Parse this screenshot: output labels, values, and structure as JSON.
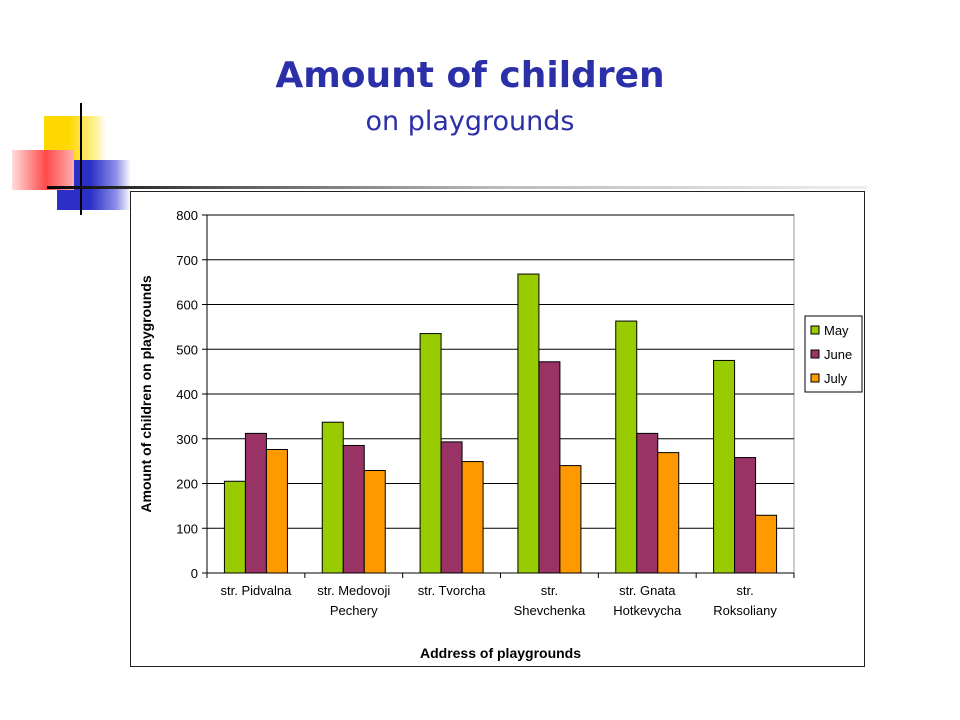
{
  "colors": {
    "title": "#2b2fa8",
    "may": "#99cc00",
    "june": "#993366",
    "july": "#ff9900"
  },
  "header": {
    "title": "Amount of children",
    "subtitle": "on playgrounds"
  },
  "chart_data": {
    "type": "bar",
    "xlabel": "Address of playgrounds",
    "ylabel": "Amount of children on playgrounds",
    "ylim": [
      0,
      800
    ],
    "yticks": [
      0,
      100,
      200,
      300,
      400,
      500,
      600,
      700,
      800
    ],
    "grid": true,
    "legend": "right",
    "categories": [
      [
        "str. Pidvalna"
      ],
      [
        "str. Medovoji",
        "Pechery"
      ],
      [
        "str. Tvorcha"
      ],
      [
        "str.",
        "Shevchenka"
      ],
      [
        "str. Gnata",
        "Hotkevycha"
      ],
      [
        "str.",
        "Roksoliany"
      ]
    ],
    "series": [
      {
        "name": "May",
        "color": "#99cc00",
        "values": [
          205,
          337,
          535,
          668,
          563,
          475
        ]
      },
      {
        "name": "June",
        "color": "#993366",
        "values": [
          312,
          285,
          293,
          472,
          312,
          258
        ]
      },
      {
        "name": "July",
        "color": "#ff9900",
        "values": [
          276,
          229,
          249,
          240,
          269,
          129
        ]
      }
    ]
  }
}
